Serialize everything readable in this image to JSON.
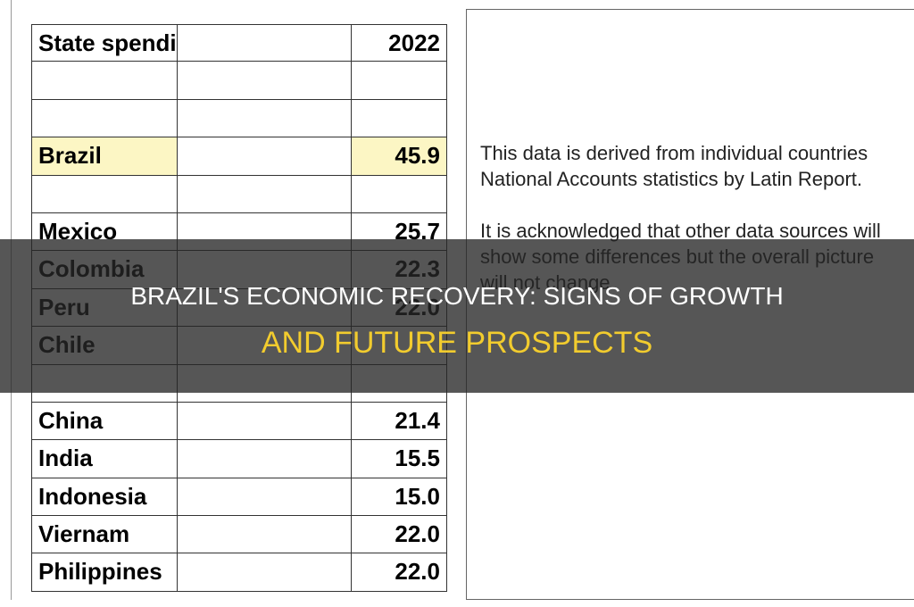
{
  "table": {
    "header": {
      "name": "State spending % GDP",
      "year": "2022"
    },
    "groups": [
      [
        {
          "name": "Brazil",
          "value": "45.9",
          "highlight": true
        }
      ],
      [
        {
          "name": "Mexico",
          "value": "25.7"
        },
        {
          "name": "Colombia",
          "value": "22.3"
        },
        {
          "name": "Peru",
          "value": "22.0"
        },
        {
          "name": "Chile"
        }
      ],
      [
        {
          "name": "China",
          "value": "21.4"
        },
        {
          "name": "India",
          "value": "15.5"
        },
        {
          "name": "Indonesia",
          "value": "15.0"
        },
        {
          "name": "Viernam",
          "value": "22.0"
        },
        {
          "name": "Philippines",
          "value": "22.0"
        }
      ]
    ],
    "highlight_color": "#fcf6c4"
  },
  "note": {
    "paragraphs": [
      "This data is derived from individual countries National Accounts statistics by Latin Report.",
      "It is acknowledged that other data sources will show some differences but the overall picture will not change."
    ]
  },
  "banner": {
    "line1": "BRAZIL'S ECONOMIC RECOVERY: SIGNS OF GROWTH",
    "line2": "AND FUTURE PROSPECTS"
  }
}
